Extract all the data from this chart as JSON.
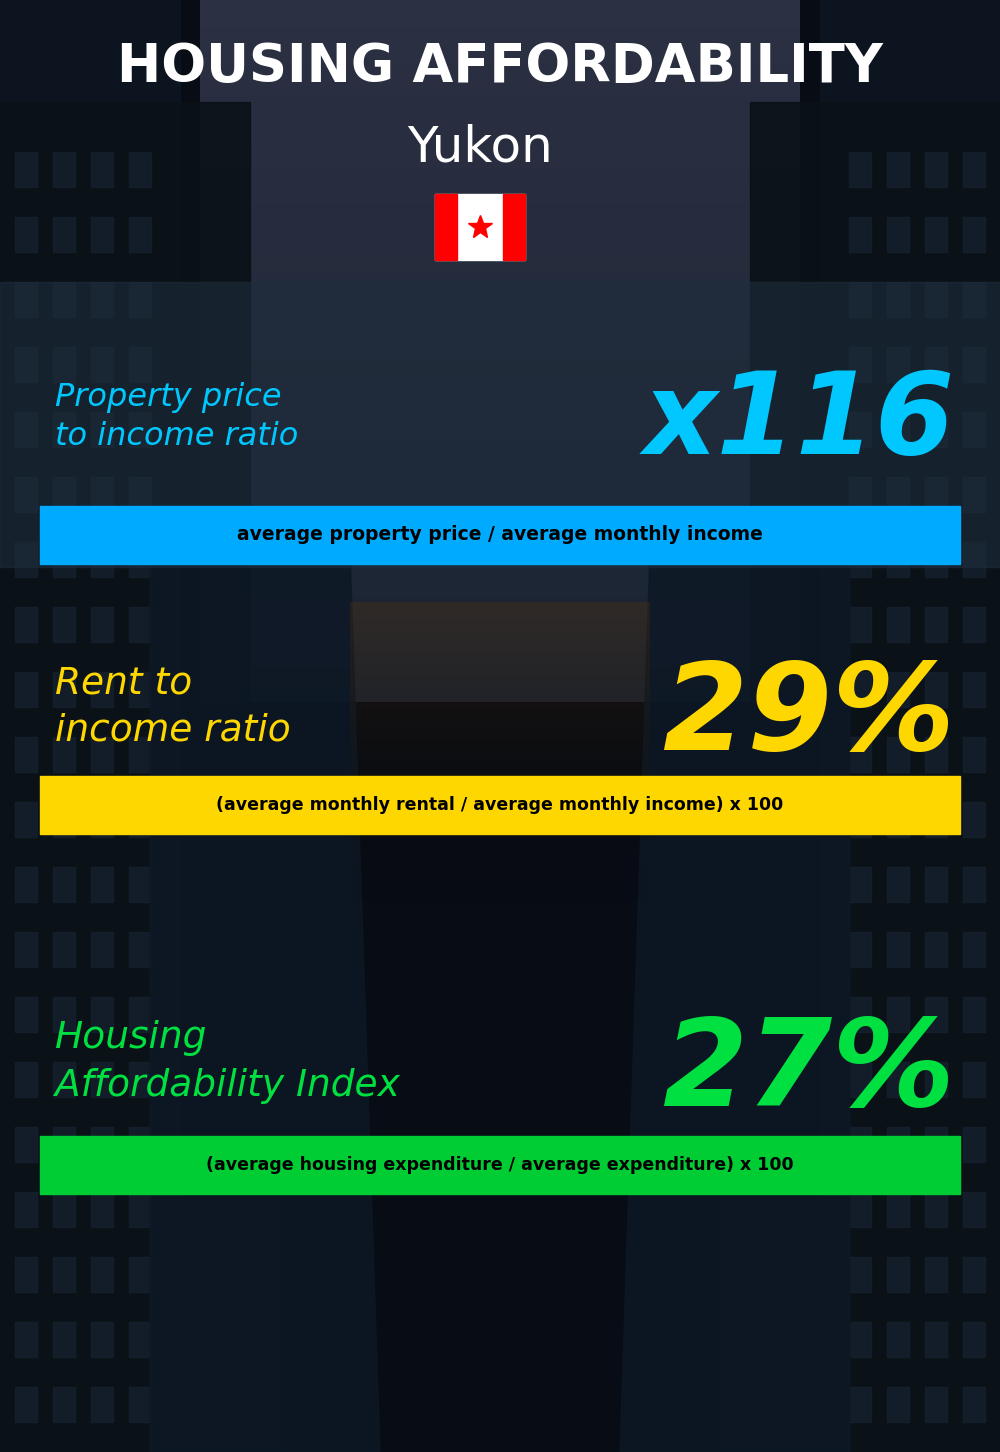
{
  "title_line1": "HOUSING AFFORDABILITY",
  "title_line2": "Yukon",
  "section1_label": "Property price\nto income ratio",
  "section1_value": "x116",
  "section1_label_color": "#00c8ff",
  "section1_value_color": "#00c8ff",
  "section1_banner": "average property price / average monthly income",
  "section1_banner_bg": "#00aaff",
  "section2_label": "Rent to\nincome ratio",
  "section2_value": "29%",
  "section2_label_color": "#ffd700",
  "section2_value_color": "#ffd700",
  "section2_banner": "(average monthly rental / average monthly income) x 100",
  "section2_banner_bg": "#ffd700",
  "section3_label": "Housing\nAffordability Index",
  "section3_value": "27%",
  "section3_label_color": "#00e040",
  "section3_value_color": "#00e040",
  "section3_banner": "(average housing expenditure / average expenditure) x 100",
  "section3_banner_bg": "#00cc33",
  "bg_color": "#080c14",
  "title_color": "#ffffff",
  "banner_text_color": "#000000",
  "section1_overlay_color": "#202c3a",
  "section1_overlay_alpha": 0.65
}
